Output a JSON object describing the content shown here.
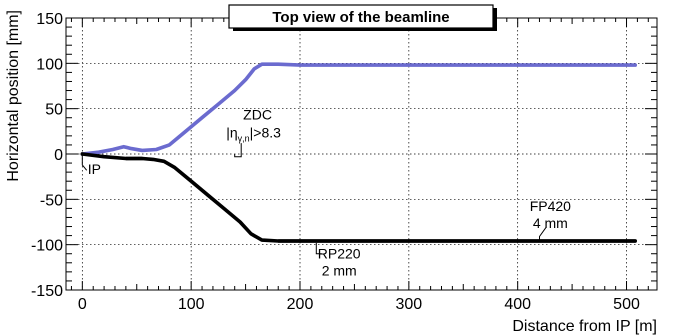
{
  "chart_data": {
    "type": "line",
    "title": "Top view of the beamline",
    "xlabel": "Distance from IP [m]",
    "ylabel": "Horizontal position [mm]",
    "xlim": [
      -15,
      528
    ],
    "ylim": [
      -150,
      150
    ],
    "x_ticks": [
      "0",
      "100",
      "200",
      "300",
      "400",
      "500"
    ],
    "y_ticks": [
      "-150",
      "-100",
      "-50",
      "0",
      "50",
      "100",
      "150"
    ],
    "grid": true,
    "series": [
      {
        "color": "#6b6bcf",
        "width_mm": 4,
        "points": [
          [
            0,
            0
          ],
          [
            15,
            2
          ],
          [
            28,
            5
          ],
          [
            38,
            8
          ],
          [
            45,
            6
          ],
          [
            55,
            4
          ],
          [
            68,
            5
          ],
          [
            80,
            10
          ],
          [
            95,
            25
          ],
          [
            110,
            40
          ],
          [
            125,
            55
          ],
          [
            140,
            70
          ],
          [
            150,
            82
          ],
          [
            158,
            94
          ],
          [
            165,
            99
          ],
          [
            180,
            99
          ],
          [
            200,
            98
          ],
          [
            300,
            98
          ],
          [
            400,
            98
          ],
          [
            508,
            98
          ]
        ]
      },
      {
        "color": "#000000",
        "width_mm": 4,
        "points": [
          [
            0,
            0
          ],
          [
            20,
            -3
          ],
          [
            40,
            -5
          ],
          [
            55,
            -5
          ],
          [
            65,
            -6
          ],
          [
            75,
            -8
          ],
          [
            85,
            -15
          ],
          [
            100,
            -30
          ],
          [
            115,
            -45
          ],
          [
            130,
            -60
          ],
          [
            145,
            -75
          ],
          [
            155,
            -88
          ],
          [
            165,
            -95
          ],
          [
            180,
            -96
          ],
          [
            200,
            -96
          ],
          [
            300,
            -96
          ],
          [
            400,
            -96
          ],
          [
            508,
            -96
          ]
        ]
      }
    ],
    "annotations": [
      {
        "id": "ip",
        "lines": [
          "IP"
        ],
        "x": 5,
        "y": -22,
        "leader": [
          [
            0,
            0
          ],
          [
            0,
            -12
          ],
          [
            4,
            -18
          ]
        ]
      },
      {
        "id": "zdc",
        "lines": [
          "ZDC",
          "|η",
          "γ,n",
          "|>8.3"
        ],
        "x": 161,
        "y": 38,
        "leader": [
          [
            140,
            0
          ],
          [
            140,
            -3
          ],
          [
            146,
            -3
          ],
          [
            146,
            12
          ]
        ]
      },
      {
        "id": "rp220",
        "lines": [
          "RP220",
          "2 mm"
        ],
        "x": 236,
        "y": -115,
        "leader": [
          [
            215,
            -98
          ],
          [
            215,
            -110
          ],
          [
            220,
            -110
          ]
        ]
      },
      {
        "id": "fp420",
        "lines": [
          "FP420",
          "4 mm"
        ],
        "x": 430,
        "y": -63,
        "leader": [
          [
            420,
            -96
          ],
          [
            420,
            -91
          ],
          [
            426,
            -81
          ]
        ]
      }
    ]
  }
}
